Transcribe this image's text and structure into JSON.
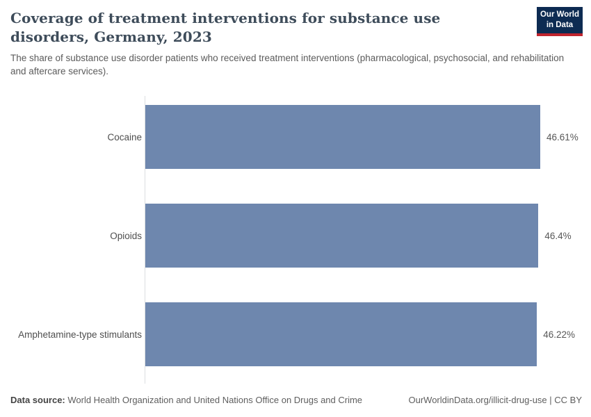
{
  "header": {
    "title": "Coverage of treatment interventions for substance use disorders, Germany, 2023",
    "subtitle": "The share of substance use disorder patients who received treatment interventions (pharmacological, psychosocial, and rehabilitation and aftercare services).",
    "logo": {
      "line1": "Our World",
      "line2": "in Data",
      "bg_color": "#0d2b52",
      "accent_color": "#c0242e"
    }
  },
  "chart_data": {
    "type": "bar",
    "orientation": "horizontal",
    "title": "Coverage of treatment interventions for substance use disorders, Germany, 2023",
    "categories": [
      "Cocaine",
      "Opioids",
      "Amphetamine-type stimulants"
    ],
    "values": [
      46.61,
      46.4,
      46.22
    ],
    "value_labels": [
      "46.61%",
      "46.4%",
      "46.22%"
    ],
    "unit": "%",
    "xlim": [
      0,
      46.61
    ],
    "bar_color": "#6e87ae",
    "axis_line_color": "#dcdee1",
    "grid": false,
    "legend": "none"
  },
  "footer": {
    "source_label": "Data source:",
    "source_text": " World Health Organization and United Nations Office on Drugs and Crime",
    "attribution": "OurWorldinData.org/illicit-drug-use | CC BY"
  }
}
